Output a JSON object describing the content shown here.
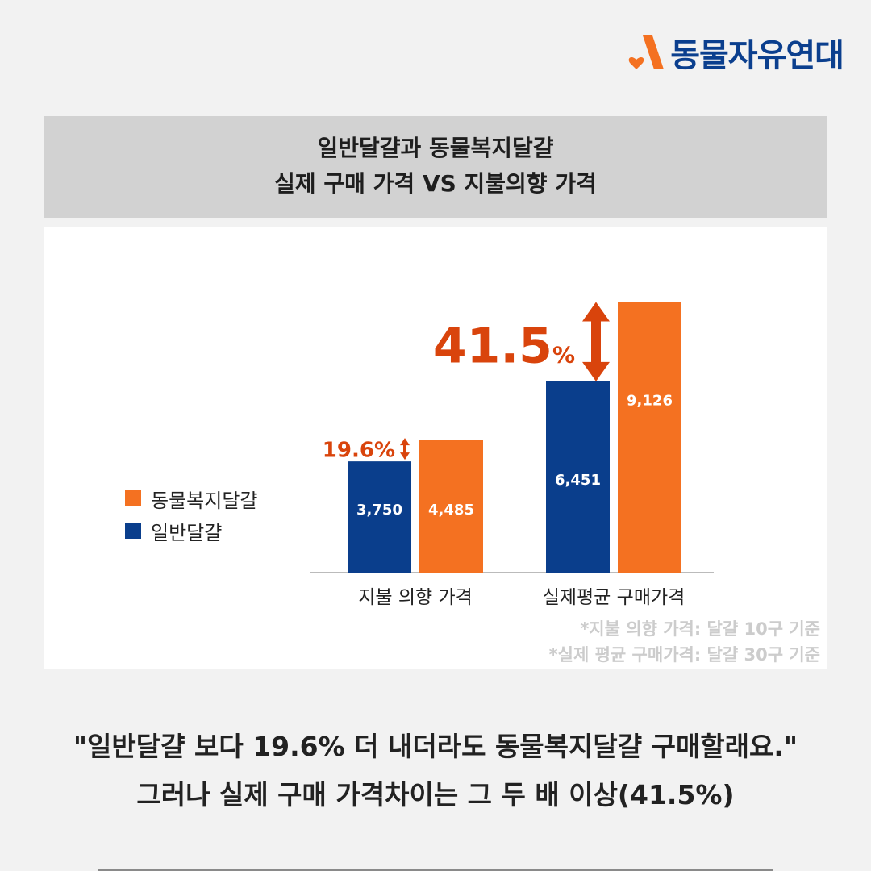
{
  "brand": {
    "name": "동물자유연대",
    "logo_colors": {
      "mark": "#f47121",
      "text": "#0b3f8e"
    }
  },
  "title": {
    "line1": "일반달걀과 동물복지달걀",
    "line2": "실제 구매 가격 VS 지불의향 가격"
  },
  "colors": {
    "orange": "#f47121",
    "blue": "#0a3e8c",
    "arrow": "#d9440c"
  },
  "chart_data": {
    "type": "bar",
    "categories": [
      "지불 의향 가격",
      "실제평균 구매가격"
    ],
    "series": [
      {
        "name": "일반달걀",
        "values": [
          3750,
          6451
        ],
        "labels": [
          "3,750",
          "6,451"
        ],
        "color": "#0a3e8c"
      },
      {
        "name": "동물복지달걀",
        "values": [
          4485,
          9126
        ],
        "labels": [
          "4,485",
          "9,126"
        ],
        "color": "#f47121"
      }
    ],
    "ylim": [
      0,
      10500
    ],
    "grid": false,
    "legend_position": "left",
    "annotations": [
      {
        "category_index": 0,
        "text": "19.6%"
      },
      {
        "category_index": 1,
        "text": "41.5",
        "unit": "%"
      }
    ]
  },
  "legend": [
    {
      "label": "동물복지달걀",
      "color": "#f47121"
    },
    {
      "label": "일반달걀",
      "color": "#0a3e8c"
    }
  ],
  "footnotes": [
    "*지불 의향 가격: 달걀 10구 기준",
    "*실제 평균 구매가격: 달걀 30구 기준"
  ],
  "caption": {
    "line1": "\"일반달걀 보다 19.6% 더 내더라도 동물복지달걀 구매할래요.\"",
    "line2": "그러나 실제 구매 가격차이는 그 두 배 이상(41.5%)"
  }
}
